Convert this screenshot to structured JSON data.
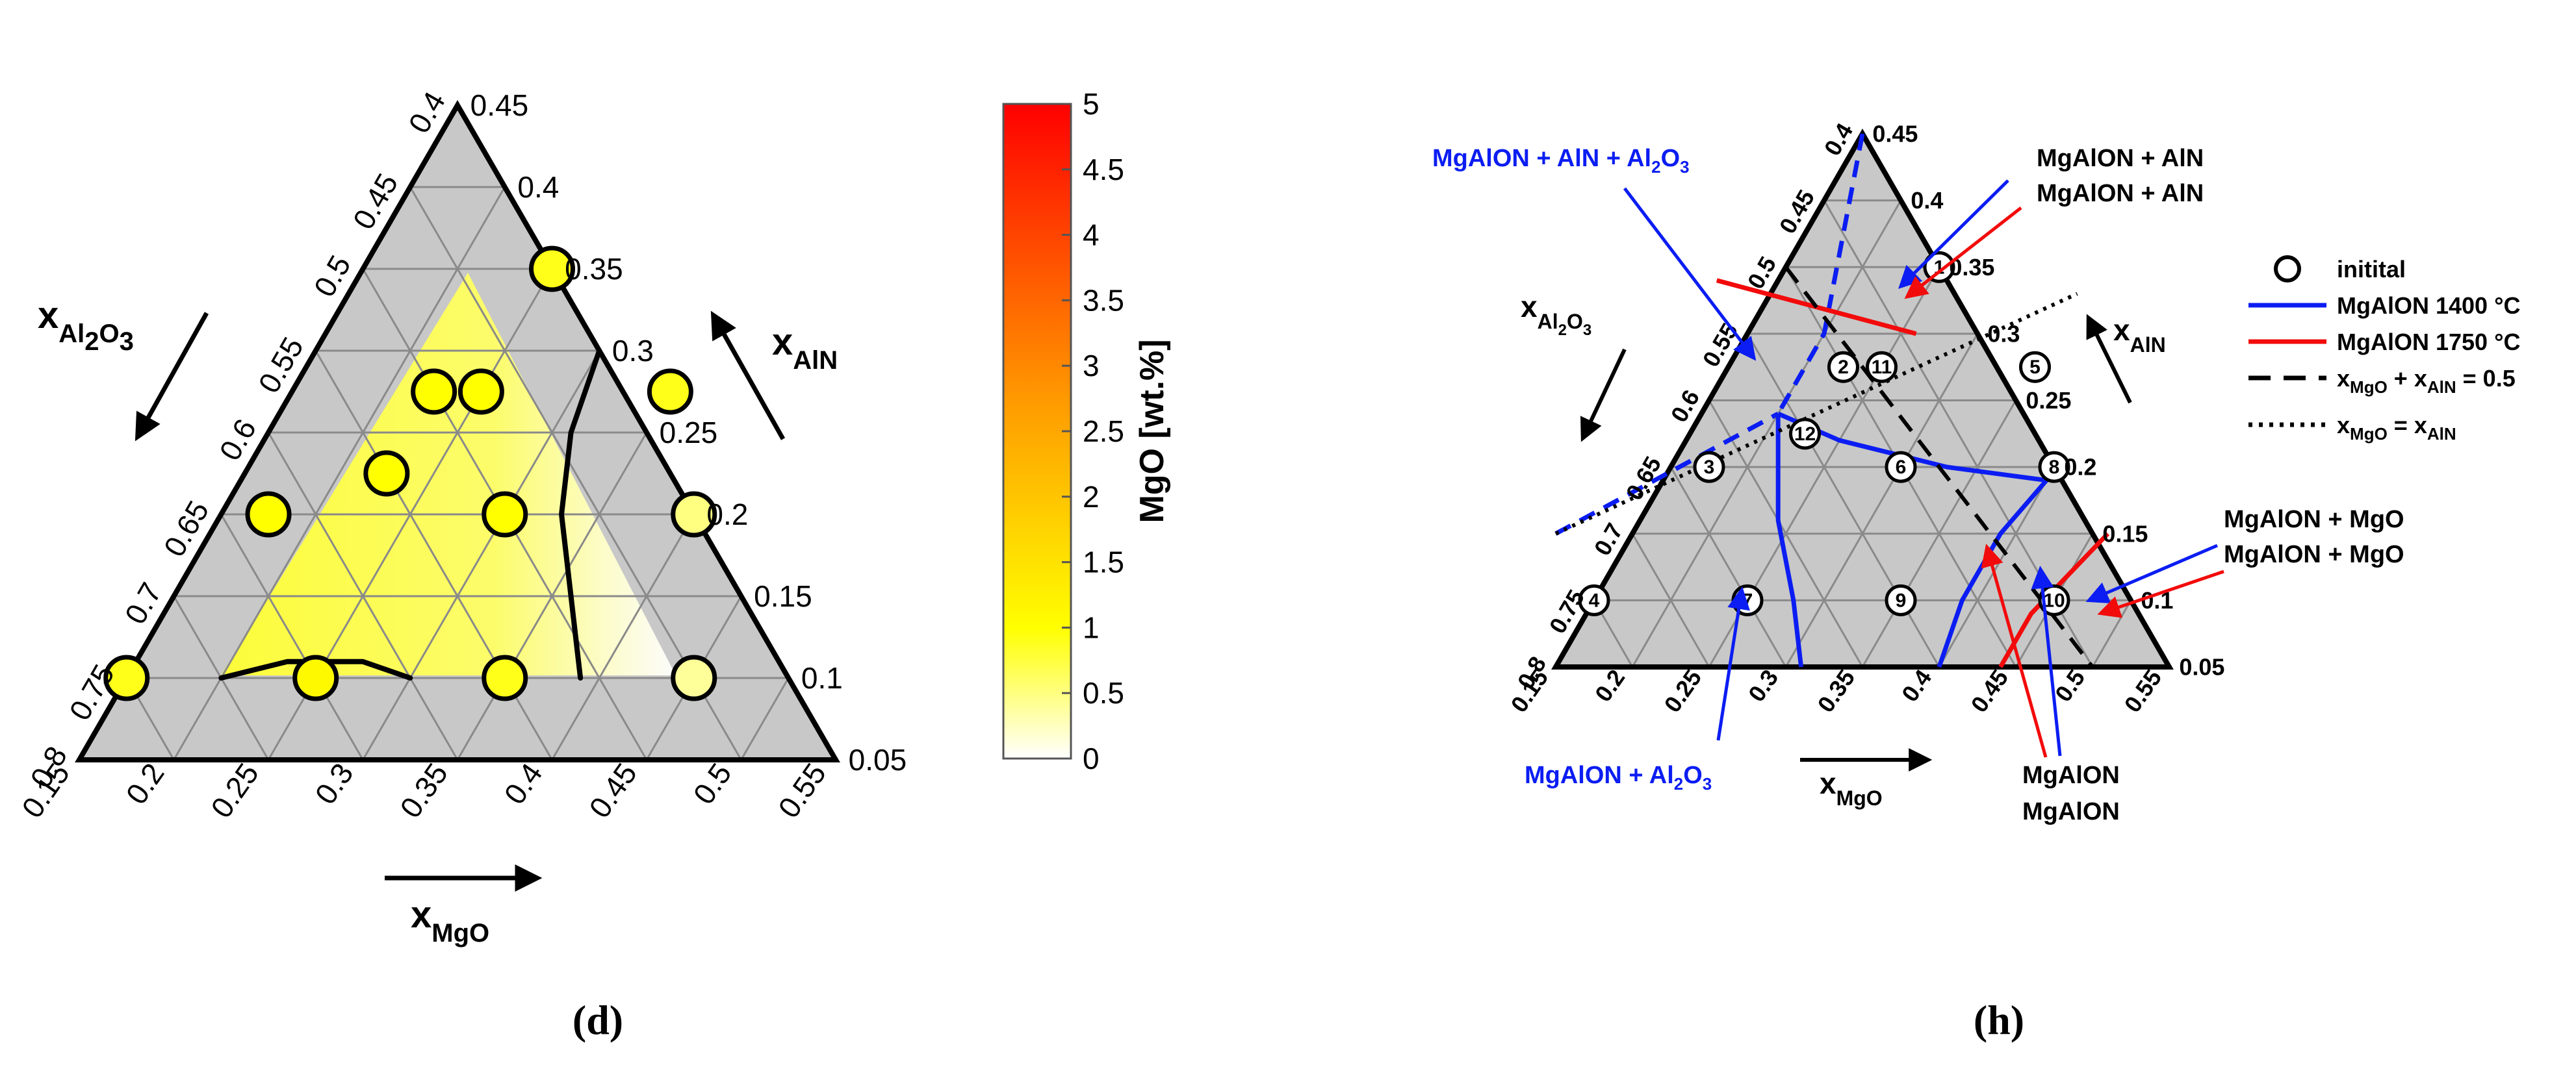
{
  "panels": {
    "d": {
      "caption": "(d)"
    },
    "h": {
      "caption": "(h)"
    }
  },
  "colors": {
    "triangle_fill": "#c8c8c8",
    "grid": "#8a8a8a",
    "blue": "#0b1df2",
    "red": "#f20b0b",
    "marker_fill": "#ffff66"
  },
  "chart_data": [
    {
      "type": "scatter",
      "subtype": "ternary",
      "panel": "d",
      "axis_labels": {
        "al2o3": {
          "main": "x",
          "sub": "Al",
          "sub2": "2",
          "sub3": "O",
          "sub4": "3"
        },
        "aln": {
          "main": "x",
          "sub": "AlN"
        },
        "mgo": {
          "main": "x",
          "sub": "MgO"
        }
      },
      "ranges": {
        "mgo": [
          0.15,
          0.55
        ],
        "aln": [
          0.05,
          0.45
        ],
        "al2o3": [
          0.4,
          0.8
        ]
      },
      "ticks": {
        "mgo": [
          "0.15",
          "0.2",
          "0.25",
          "0.3",
          "0.35",
          "0.4",
          "0.45",
          "0.5",
          "0.55"
        ],
        "aln": [
          "0.05",
          "0.1",
          "0.15",
          "0.2",
          "0.25",
          "0.3",
          "0.35",
          "0.4",
          "0.45"
        ],
        "al2o3": [
          "0.4",
          "0.45",
          "0.5",
          "0.55",
          "0.6",
          "0.65",
          "0.7",
          "0.75",
          "0.8"
        ]
      },
      "points": [
        {
          "mgo": 0.25,
          "aln": 0.35
        },
        {
          "mgo": 0.225,
          "aln": 0.275
        },
        {
          "mgo": 0.25,
          "aln": 0.275
        },
        {
          "mgo": 0.35,
          "aln": 0.275
        },
        {
          "mgo": 0.175,
          "aln": 0.2
        },
        {
          "mgo": 0.225,
          "aln": 0.225
        },
        {
          "mgo": 0.3,
          "aln": 0.2
        },
        {
          "mgo": 0.4,
          "aln": 0.2
        },
        {
          "mgo": 0.15,
          "aln": 0.1
        },
        {
          "mgo": 0.25,
          "aln": 0.1
        },
        {
          "mgo": 0.35,
          "aln": 0.1
        },
        {
          "mgo": 0.45,
          "aln": 0.1
        }
      ],
      "mgo_values_wt": [
        0.9,
        1.0,
        1.0,
        0.9,
        1.0,
        1.0,
        1.0,
        0.5,
        0.9,
        1.1,
        0.9,
        0.4
      ],
      "colorbar": {
        "label": "MgO [wt.%]",
        "min": 0,
        "max": 5,
        "ticks": [
          "0",
          "0.5",
          "1",
          "1.5",
          "2",
          "2.5",
          "3",
          "3.5",
          "4",
          "4.5",
          "5"
        ]
      },
      "boundary_curves": [
        [
          {
            "mgo": 0.3,
            "aln": 0.3
          },
          {
            "mgo": 0.31,
            "aln": 0.25
          },
          {
            "mgo": 0.33,
            "aln": 0.2
          },
          {
            "mgo": 0.36,
            "aln": 0.15
          },
          {
            "mgo": 0.39,
            "aln": 0.1
          }
        ],
        [
          {
            "mgo": 0.2,
            "aln": 0.1
          },
          {
            "mgo": 0.23,
            "aln": 0.11
          },
          {
            "mgo": 0.27,
            "aln": 0.11
          },
          {
            "mgo": 0.3,
            "aln": 0.1
          }
        ]
      ]
    },
    {
      "type": "scatter",
      "subtype": "ternary",
      "panel": "h",
      "axis_labels": {
        "al2o3": {
          "main": "x",
          "sub": "Al",
          "sub2": "2",
          "sub3": "O",
          "sub4": "3"
        },
        "aln": {
          "main": "x",
          "sub": "AlN"
        },
        "mgo": {
          "main": "x",
          "sub": "MgO"
        }
      },
      "ranges": {
        "mgo": [
          0.15,
          0.55
        ],
        "aln": [
          0.05,
          0.45
        ],
        "al2o3": [
          0.4,
          0.8
        ]
      },
      "ticks": {
        "mgo": [
          "0.15",
          "0.2",
          "0.25",
          "0.3",
          "0.35",
          "0.4",
          "0.45",
          "0.5",
          "0.55"
        ],
        "aln": [
          "0.05",
          "0.1",
          "0.15",
          "0.2",
          "0.25",
          "0.3",
          "0.35",
          "0.4",
          "0.45"
        ],
        "al2o3": [
          "0.4",
          "0.45",
          "0.5",
          "0.55",
          "0.6",
          "0.65",
          "0.7",
          "0.75",
          "0.8"
        ]
      },
      "points": [
        {
          "id": "1",
          "mgo": 0.25,
          "aln": 0.35
        },
        {
          "id": "2",
          "mgo": 0.225,
          "aln": 0.275
        },
        {
          "id": "11",
          "mgo": 0.25,
          "aln": 0.275
        },
        {
          "id": "5",
          "mgo": 0.35,
          "aln": 0.275
        },
        {
          "id": "3",
          "mgo": 0.175,
          "aln": 0.2
        },
        {
          "id": "12",
          "mgo": 0.225,
          "aln": 0.225
        },
        {
          "id": "6",
          "mgo": 0.3,
          "aln": 0.2
        },
        {
          "id": "8",
          "mgo": 0.4,
          "aln": 0.2
        },
        {
          "id": "4",
          "mgo": 0.15,
          "aln": 0.1
        },
        {
          "id": "7",
          "mgo": 0.25,
          "aln": 0.1
        },
        {
          "id": "9",
          "mgo": 0.35,
          "aln": 0.1
        },
        {
          "id": "10",
          "mgo": 0.45,
          "aln": 0.1
        }
      ],
      "legend": [
        {
          "label": "initital",
          "style": "circle"
        },
        {
          "label": "MgAlON 1400 °C",
          "style": "blue"
        },
        {
          "label": "MgAlON 1750 °C",
          "style": "red"
        },
        {
          "label": "x",
          "sub": "MgO",
          "mid": " + x",
          "sub2": "AlN",
          "tail": " = 0.5",
          "style": "dashed"
        },
        {
          "label": "x",
          "sub": "MgO",
          "mid": " = x",
          "sub2": "AlN",
          "tail": "",
          "style": "dotted"
        }
      ],
      "lines": {
        "blue": [
          [
            {
              "mgo": 0.15,
              "aln": 0.45
            },
            {
              "mgo": 0.2,
              "aln": 0.3
            },
            {
              "mgo": 0.2,
              "aln": 0.24
            }
          ],
          [
            {
              "mgo": 0.2,
              "aln": 0.24
            },
            {
              "mgo": 0.25,
              "aln": 0.22
            },
            {
              "mgo": 0.33,
              "aln": 0.2
            },
            {
              "mgo": 0.4,
              "aln": 0.19
            }
          ],
          [
            {
              "mgo": 0.2,
              "aln": 0.24
            },
            {
              "mgo": 0.24,
              "aln": 0.16
            },
            {
              "mgo": 0.28,
              "aln": 0.1
            },
            {
              "mgo": 0.31,
              "aln": 0.05
            }
          ],
          [
            {
              "mgo": 0.4,
              "aln": 0.19
            },
            {
              "mgo": 0.39,
              "aln": 0.15
            },
            {
              "mgo": 0.39,
              "aln": 0.1
            },
            {
              "mgo": 0.4,
              "aln": 0.05
            }
          ],
          [
            {
              "mgo": 0.1,
              "aln": 0.15
            },
            {
              "mgo": 0.2,
              "aln": 0.24
            }
          ]
        ],
        "red": [
          [
            {
              "mgo": 0.11,
              "aln": 0.34
            },
            {
              "mgo": 0.26,
              "aln": 0.3
            }
          ],
          [
            {
              "mgo": 0.44,
              "aln": 0.05
            },
            {
              "mgo": 0.44,
              "aln": 0.09
            },
            {
              "mgo": 0.46,
              "aln": 0.15
            }
          ]
        ],
        "dashed": [
          [
            {
              "mgo": 0.15,
              "aln": 0.35
            },
            {
              "mgo": 0.5,
              "aln": 0.0
            }
          ]
        ],
        "dotted": [
          [
            {
              "mgo": 0.1,
              "aln": 0.15
            },
            {
              "mgo": 0.35,
              "aln": 0.33
            }
          ]
        ]
      },
      "annotations": [
        {
          "parts": [
            "MgAlON + AlN + Al",
            "2",
            "O",
            "3",
            ""
          ],
          "color": "blue",
          "pos": "top-left"
        },
        {
          "parts": [
            "MgAlON + AlN"
          ],
          "color": "blue",
          "pos": "top-right"
        },
        {
          "parts": [
            "MgAlON + AlN"
          ],
          "color": "red",
          "pos": "top-right"
        },
        {
          "parts": [
            "MgAlON + MgO"
          ],
          "color": "blue",
          "pos": "right"
        },
        {
          "parts": [
            "MgAlON + MgO"
          ],
          "color": "red",
          "pos": "right"
        },
        {
          "parts": [
            "MgAlON + Al",
            "2",
            "O",
            "3",
            ""
          ],
          "color": "blue",
          "pos": "bottom-left"
        },
        {
          "parts": [
            "MgAlON"
          ],
          "color": "blue",
          "pos": "bottom-right"
        },
        {
          "parts": [
            "MgAlON"
          ],
          "color": "red",
          "pos": "bottom-right"
        }
      ]
    }
  ]
}
